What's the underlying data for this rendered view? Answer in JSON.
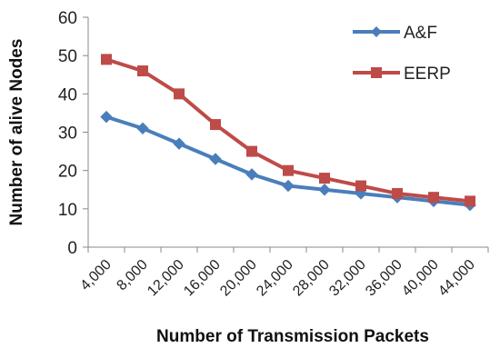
{
  "chart_data": {
    "type": "line",
    "title": "",
    "xlabel": "Number of Transmission Packets",
    "ylabel": "Number of alive Nodes",
    "categories": [
      "4,000",
      "8,000",
      "12,000",
      "16,000",
      "20,000",
      "24,000",
      "28,000",
      "32,000",
      "36,000",
      "40,000",
      "44,000"
    ],
    "ylim": [
      0,
      60
    ],
    "yticks": [
      "0",
      "10",
      "20",
      "30",
      "40",
      "50",
      "60"
    ],
    "grid": false,
    "legend_position": "top-right",
    "series": [
      {
        "name": "A&F",
        "marker": "diamond",
        "color": "#4a7ebb",
        "values": [
          34,
          31,
          27,
          23,
          19,
          16,
          15,
          14,
          13,
          12,
          11
        ]
      },
      {
        "name": "EERP",
        "marker": "square",
        "color": "#be4b48",
        "values": [
          49,
          46,
          40,
          32,
          25,
          20,
          18,
          16,
          14,
          13,
          12
        ]
      }
    ]
  }
}
